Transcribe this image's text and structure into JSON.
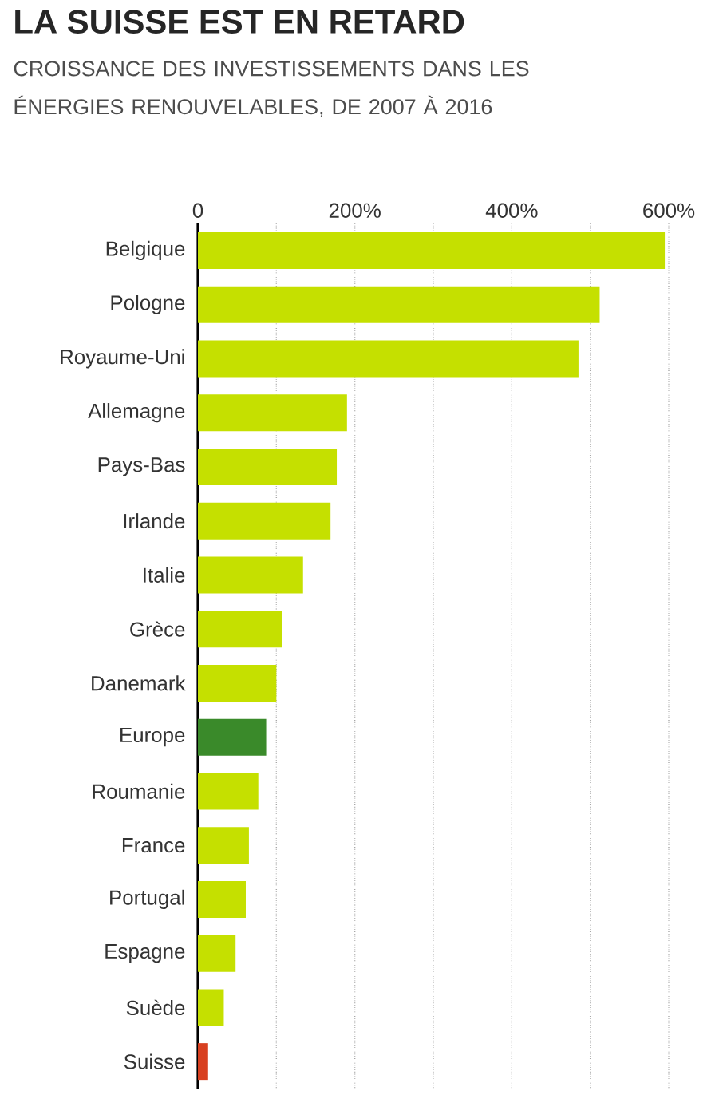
{
  "chart_data": {
    "type": "bar",
    "orientation": "horizontal",
    "title": "LA SUISSE EST EN RETARD",
    "subtitle": "CROISSANCE DES INVESTISSEMENTS DANS LES ÉNERGIES RENOUVELABLES, DE 2007 À 2016",
    "categories": [
      "Belgique",
      "Pologne",
      "Royaume-Uni",
      "Allemagne",
      "Pays-Bas",
      "Irlande",
      "Italie",
      "Grèce",
      "Danemark",
      "Europe",
      "Roumanie",
      "France",
      "Portugal",
      "Espagne",
      "Suède",
      "Suisse"
    ],
    "values": [
      595,
      512,
      485,
      190,
      177,
      169,
      134,
      107,
      100,
      87,
      77,
      65,
      61,
      48,
      33,
      13
    ],
    "colors": [
      "#c5e000",
      "#c5e000",
      "#c5e000",
      "#c5e000",
      "#c5e000",
      "#c5e000",
      "#c5e000",
      "#c5e000",
      "#c5e000",
      "#3a8a2a",
      "#c5e000",
      "#c5e000",
      "#c5e000",
      "#c5e000",
      "#c5e000",
      "#d84020"
    ],
    "xlim": [
      0,
      600
    ],
    "xticks": [
      0,
      {
        "value": 100,
        "label": null
      },
      {
        "value": 200,
        "label": "200%"
      },
      {
        "value": 300,
        "label": null
      },
      {
        "value": 400,
        "label": "400%"
      },
      {
        "value": 500,
        "label": null
      },
      {
        "value": 600,
        "label": "600%"
      }
    ],
    "grid": "x"
  }
}
